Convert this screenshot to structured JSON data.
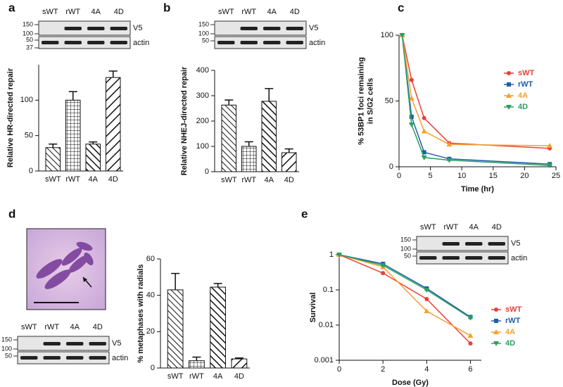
{
  "chart_data": [
    {
      "type": "bar",
      "panel": "a",
      "ylabel": "Relative HR-directed repair",
      "categories": [
        "sWT",
        "rWT",
        "4A",
        "4D"
      ],
      "values": [
        33,
        100,
        38,
        132
      ],
      "errors": [
        5,
        12,
        3,
        9
      ],
      "ylim": [
        0,
        150
      ],
      "yticks": [
        0,
        50,
        100
      ],
      "blot": {
        "lanes": [
          "sWT",
          "rWT",
          "4A",
          "4D"
        ],
        "markers": [
          150,
          100,
          50,
          37
        ],
        "bands": [
          "V5",
          "actin"
        ]
      }
    },
    {
      "type": "bar",
      "panel": "b",
      "ylabel": "Relative NHEJ-directed repair",
      "categories": [
        "sWT",
        "rWT",
        "4A",
        "4D"
      ],
      "values": [
        263,
        100,
        278,
        75
      ],
      "errors": [
        20,
        18,
        50,
        15
      ],
      "ylim": [
        0,
        400
      ],
      "yticks": [
        0,
        100,
        200,
        300,
        400
      ],
      "blot": {
        "lanes": [
          "sWT",
          "rWT",
          "4A",
          "4D"
        ],
        "markers": [
          150,
          100,
          50
        ],
        "bands": [
          "V5",
          "actin"
        ]
      }
    },
    {
      "type": "line",
      "panel": "c",
      "xlabel": "Time (hr)",
      "ylabel": [
        "% 53BP1 foci remaining",
        "in S/G2 cells"
      ],
      "x": [
        0.5,
        2,
        4,
        8,
        24
      ],
      "series": [
        {
          "name": "sWT",
          "color": "#e8413c",
          "marker": "circle",
          "values": [
            100,
            66,
            37,
            18,
            14
          ]
        },
        {
          "name": "rWT",
          "color": "#1f5fa8",
          "marker": "square",
          "values": [
            100,
            38,
            11,
            6,
            2
          ]
        },
        {
          "name": "4A",
          "color": "#f5a030",
          "marker": "triangle",
          "values": [
            100,
            52,
            27,
            17,
            16
          ]
        },
        {
          "name": "4D",
          "color": "#2aa060",
          "marker": "triangle-down",
          "values": [
            100,
            32,
            7,
            5,
            1
          ]
        }
      ],
      "xlim": [
        0,
        25
      ],
      "xticks": [
        0,
        5,
        10,
        15,
        20,
        25
      ],
      "ylim": [
        0,
        100
      ],
      "yticks": [
        0,
        50,
        100
      ],
      "log_y": false
    },
    {
      "type": "bar",
      "panel": "d",
      "ylabel": "% metaphases with radials",
      "categories": [
        "sWT",
        "rWT",
        "4A",
        "4D"
      ],
      "values": [
        43,
        4,
        44.5,
        5
      ],
      "errors": [
        9,
        2,
        2,
        0.5
      ],
      "ylim": [
        0,
        60
      ],
      "yticks": [
        0,
        20,
        40,
        60
      ],
      "blot": {
        "lanes": [
          "sWT",
          "rWT",
          "4A",
          "4D"
        ],
        "markers": [
          150,
          100,
          50
        ],
        "bands": [
          "V5",
          "actin"
        ]
      }
    },
    {
      "type": "line",
      "panel": "e",
      "xlabel": "Dose (Gy)",
      "ylabel": [
        "Survival"
      ],
      "x": [
        0,
        2,
        4,
        6
      ],
      "series": [
        {
          "name": "sWT",
          "color": "#e8413c",
          "marker": "circle",
          "values": [
            1,
            0.3,
            0.055,
            0.003
          ]
        },
        {
          "name": "rWT",
          "color": "#1f5fa8",
          "marker": "square",
          "values": [
            1,
            0.55,
            0.11,
            0.017
          ]
        },
        {
          "name": "4A",
          "color": "#f5a030",
          "marker": "triangle",
          "values": [
            1,
            0.45,
            0.025,
            0.005
          ]
        },
        {
          "name": "4D",
          "color": "#2aa060",
          "marker": "triangle-down",
          "values": [
            1,
            0.5,
            0.1,
            0.016
          ]
        }
      ],
      "xlim": [
        0,
        6.5
      ],
      "xticks": [
        0,
        2,
        4,
        6
      ],
      "ylim": [
        0.001,
        1
      ],
      "yticks": [
        0.001,
        0.01,
        0.1,
        1
      ],
      "log_y": true,
      "blot": {
        "lanes": [
          "sWT",
          "rWT",
          "4A",
          "4D"
        ],
        "markers": [
          150,
          100,
          50
        ],
        "bands": [
          "V5",
          "actin"
        ]
      }
    }
  ]
}
